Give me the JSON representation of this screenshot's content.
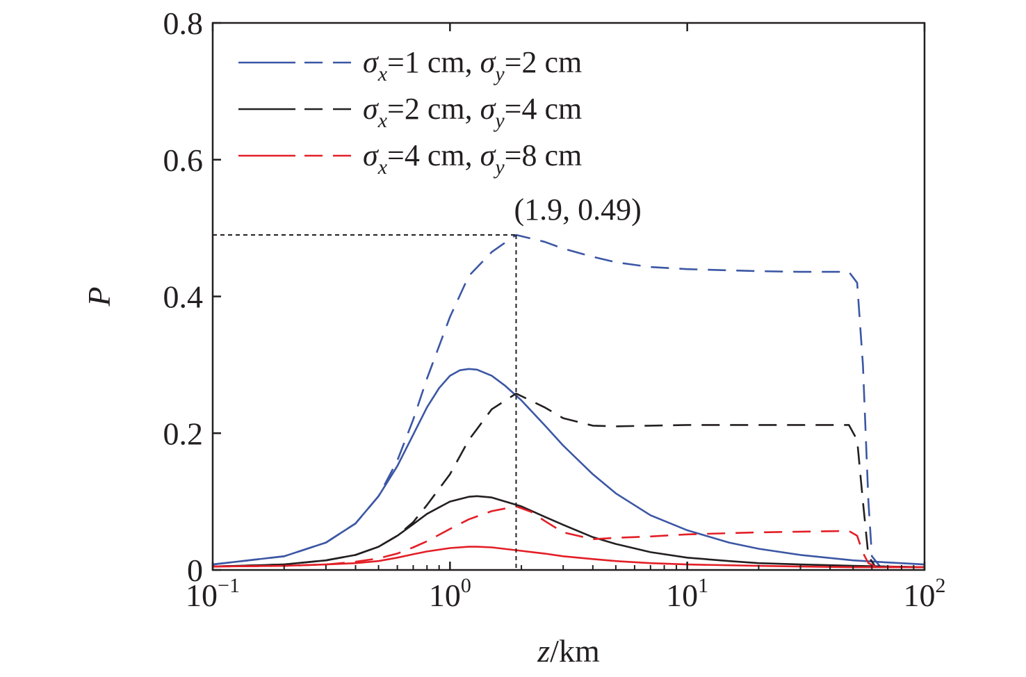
{
  "chart_data": {
    "type": "line",
    "xscale": "log",
    "xlim": [
      0.1,
      100
    ],
    "ylim": [
      0,
      0.8
    ],
    "xlabel": {
      "italic": "z",
      "rest": "/km"
    },
    "ylabel": "P",
    "x_ticks": [
      {
        "value": 0.1,
        "base": "10",
        "exp": "−1"
      },
      {
        "value": 1,
        "base": "10",
        "exp": "0"
      },
      {
        "value": 10,
        "base": "10",
        "exp": "1"
      },
      {
        "value": 100,
        "base": "10",
        "exp": "2"
      }
    ],
    "y_ticks": [
      {
        "value": 0,
        "label": "0"
      },
      {
        "value": 0.2,
        "label": "0.2"
      },
      {
        "value": 0.4,
        "label": "0.4"
      },
      {
        "value": 0.6,
        "label": "0.6"
      },
      {
        "value": 0.8,
        "label": "0.8"
      }
    ],
    "grid": false,
    "legend_position": "top-left",
    "legend": [
      {
        "color": "#3b56a4",
        "sx": "=1 cm, ",
        "sy": "=2 cm"
      },
      {
        "color": "#231f20",
        "sx": "=2 cm, ",
        "sy": "=4 cm"
      },
      {
        "color": "#e31e26",
        "sx": "=4 cm, ",
        "sy": "=8 cm"
      }
    ],
    "series": [
      {
        "legend_index": 0,
        "style": "solid",
        "color": "#3b56a4",
        "x": [
          0.1,
          0.2,
          0.3,
          0.4,
          0.5,
          0.6,
          0.7,
          0.8,
          0.9,
          1.0,
          1.1,
          1.2,
          1.3,
          1.5,
          1.7,
          2.0,
          2.5,
          3,
          4,
          5,
          7,
          10,
          15,
          20,
          30,
          50,
          70,
          100
        ],
        "y": [
          0.008,
          0.02,
          0.04,
          0.068,
          0.108,
          0.152,
          0.198,
          0.238,
          0.266,
          0.284,
          0.292,
          0.294,
          0.293,
          0.284,
          0.27,
          0.248,
          0.212,
          0.182,
          0.14,
          0.112,
          0.08,
          0.058,
          0.04,
          0.031,
          0.022,
          0.014,
          0.011,
          0.008
        ]
      },
      {
        "legend_index": 0,
        "style": "dashed",
        "color": "#3b56a4",
        "x": [
          0.1,
          0.2,
          0.3,
          0.4,
          0.5,
          0.6,
          0.7,
          0.8,
          1.0,
          1.2,
          1.5,
          1.9,
          2.5,
          3,
          4,
          5,
          7,
          10,
          20,
          30,
          48,
          52,
          55,
          58,
          60,
          65,
          100
        ],
        "y": [
          0.008,
          0.02,
          0.04,
          0.068,
          0.108,
          0.16,
          0.22,
          0.28,
          0.37,
          0.43,
          0.465,
          0.49,
          0.48,
          0.47,
          0.458,
          0.45,
          0.443,
          0.44,
          0.437,
          0.436,
          0.436,
          0.42,
          0.3,
          0.1,
          0.02,
          0.005,
          0.004
        ]
      },
      {
        "legend_index": 1,
        "style": "solid",
        "color": "#231f20",
        "x": [
          0.1,
          0.2,
          0.3,
          0.4,
          0.5,
          0.6,
          0.7,
          0.8,
          1.0,
          1.2,
          1.3,
          1.5,
          2.0,
          2.5,
          3,
          4,
          5,
          7,
          10,
          15,
          20,
          30,
          50,
          70,
          100
        ],
        "y": [
          0.005,
          0.008,
          0.014,
          0.022,
          0.034,
          0.05,
          0.067,
          0.082,
          0.1,
          0.107,
          0.108,
          0.106,
          0.093,
          0.078,
          0.066,
          0.048,
          0.038,
          0.026,
          0.018,
          0.013,
          0.01,
          0.008,
          0.006,
          0.005,
          0.004
        ]
      },
      {
        "legend_index": 1,
        "style": "dashed",
        "color": "#231f20",
        "x": [
          0.1,
          0.2,
          0.3,
          0.4,
          0.5,
          0.6,
          0.7,
          0.8,
          1.0,
          1.2,
          1.5,
          1.9,
          2.5,
          3,
          4,
          5,
          7,
          10,
          20,
          30,
          48,
          52,
          55,
          58,
          62,
          100
        ],
        "y": [
          0.005,
          0.008,
          0.014,
          0.022,
          0.034,
          0.05,
          0.07,
          0.095,
          0.14,
          0.19,
          0.235,
          0.258,
          0.238,
          0.222,
          0.211,
          0.21,
          0.211,
          0.212,
          0.212,
          0.212,
          0.212,
          0.19,
          0.1,
          0.02,
          0.005,
          0.004
        ]
      },
      {
        "legend_index": 2,
        "style": "solid",
        "color": "#e31e26",
        "x": [
          0.1,
          0.2,
          0.3,
          0.4,
          0.5,
          0.6,
          0.7,
          0.8,
          1.0,
          1.2,
          1.3,
          1.5,
          2.0,
          2.5,
          3,
          4,
          5,
          7,
          10,
          20,
          30,
          50,
          100
        ],
        "y": [
          0.005,
          0.006,
          0.008,
          0.01,
          0.013,
          0.018,
          0.023,
          0.027,
          0.032,
          0.034,
          0.034,
          0.033,
          0.028,
          0.024,
          0.02,
          0.016,
          0.013,
          0.01,
          0.008,
          0.006,
          0.005,
          0.004,
          0.004
        ]
      },
      {
        "legend_index": 2,
        "style": "dashed",
        "color": "#e31e26",
        "x": [
          0.1,
          0.2,
          0.3,
          0.4,
          0.5,
          0.6,
          0.7,
          0.8,
          1.0,
          1.2,
          1.5,
          1.9,
          2.2,
          2.5,
          3,
          4,
          5,
          7,
          10,
          20,
          30,
          48,
          52,
          55,
          58,
          62,
          100
        ],
        "y": [
          0.005,
          0.006,
          0.008,
          0.012,
          0.017,
          0.024,
          0.033,
          0.042,
          0.06,
          0.074,
          0.086,
          0.093,
          0.085,
          0.072,
          0.055,
          0.045,
          0.047,
          0.049,
          0.052,
          0.055,
          0.056,
          0.057,
          0.05,
          0.025,
          0.01,
          0.005,
          0.004
        ]
      }
    ],
    "annotation": {
      "text": "(1.9, 0.49)",
      "x": 1.9,
      "y": 0.49
    }
  }
}
